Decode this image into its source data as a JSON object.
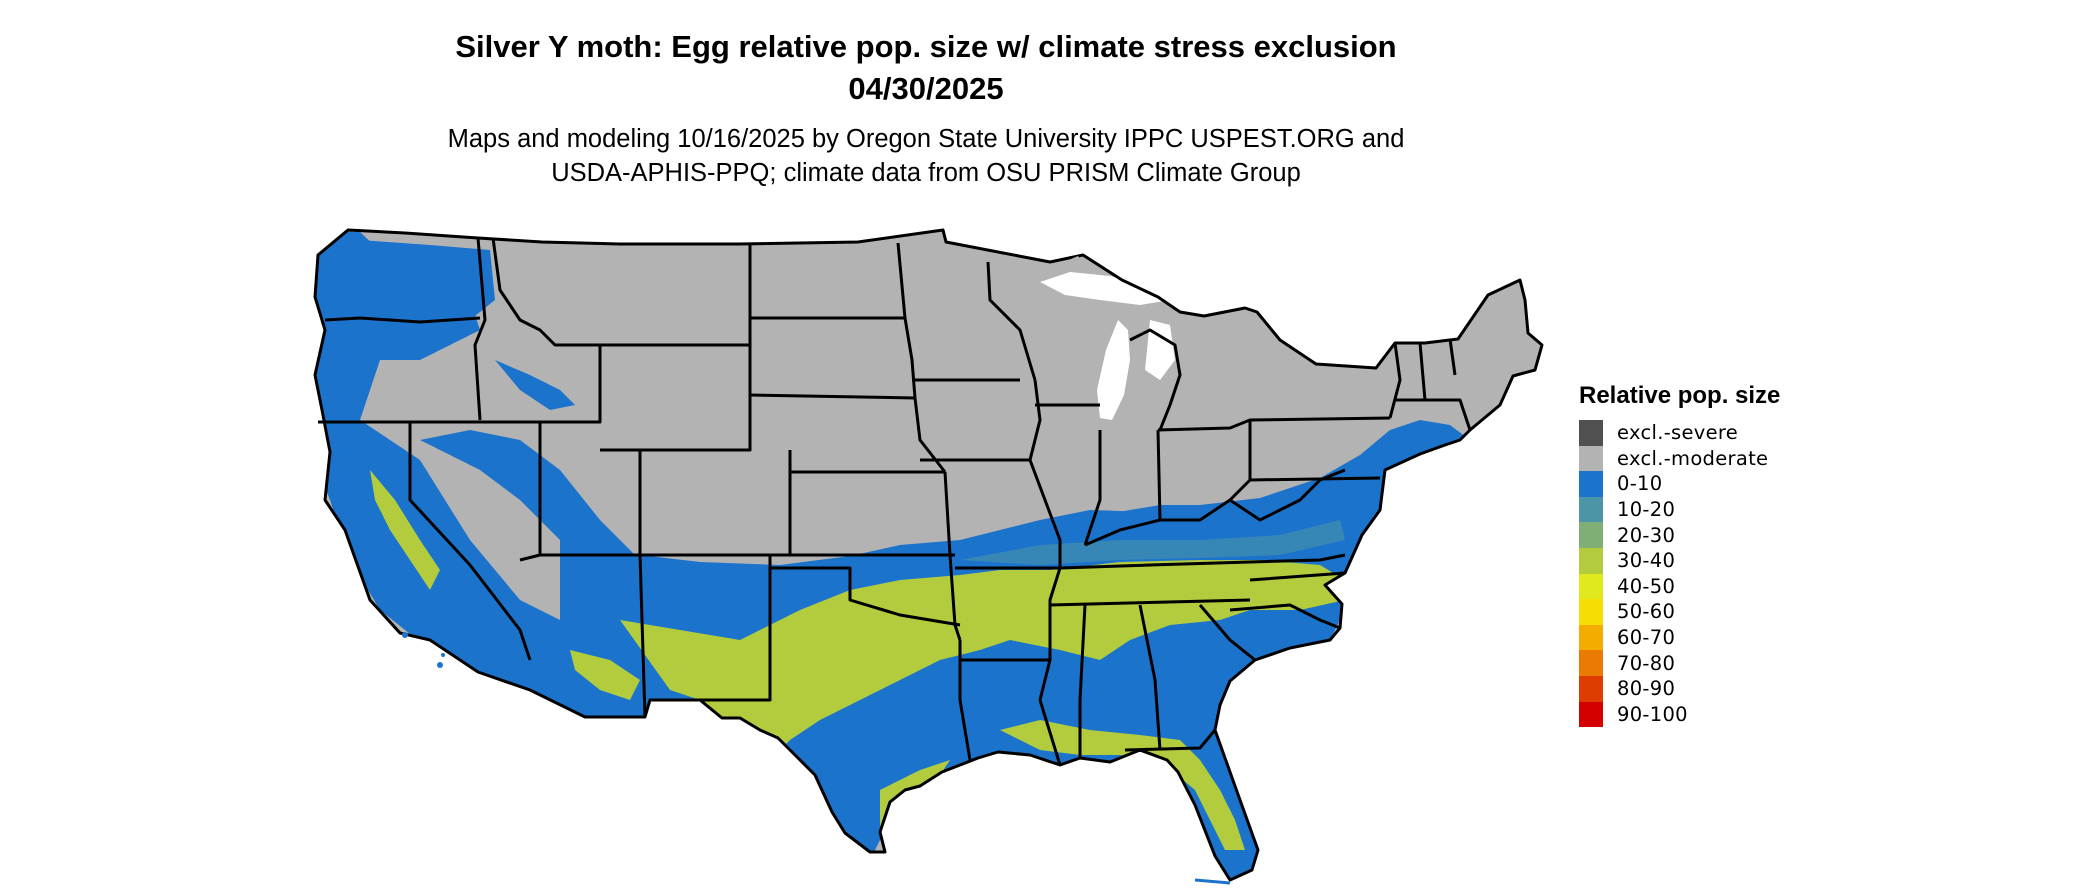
{
  "title_line1": "Silver Y moth: Egg relative pop. size w/ climate stress exclusion",
  "title_line2": "04/30/2025",
  "subtitle_line1": "Maps and modeling 10/16/2025 by Oregon State University IPPC USPEST.ORG and",
  "subtitle_line2": "USDA-APHIS-PPQ; climate data from OSU PRISM Climate Group",
  "legend": {
    "title": "Relative pop. size",
    "items": [
      {
        "label": "excl.-severe",
        "color": "#505050"
      },
      {
        "label": "excl.-moderate",
        "color": "#b3b3b3"
      },
      {
        "label": "0-10",
        "color": "#1c73cc"
      },
      {
        "label": "10-20",
        "color": "#4a95a6"
      },
      {
        "label": "20-30",
        "color": "#7fae77"
      },
      {
        "label": "30-40",
        "color": "#b2cc3e"
      },
      {
        "label": "40-50",
        "color": "#e1e81e"
      },
      {
        "label": "50-60",
        "color": "#f6dd04"
      },
      {
        "label": "60-70",
        "color": "#f3ad00"
      },
      {
        "label": "70-80",
        "color": "#ea7a02"
      },
      {
        "label": "80-90",
        "color": "#df3d00"
      },
      {
        "label": "90-100",
        "color": "#d40000"
      }
    ]
  },
  "map": {
    "colors": {
      "excluded": "#b3b3b3",
      "low": "#1c73cc",
      "mid_low": "#4a95a6",
      "mid": "#b2cc3e",
      "outline": "#000000"
    }
  }
}
